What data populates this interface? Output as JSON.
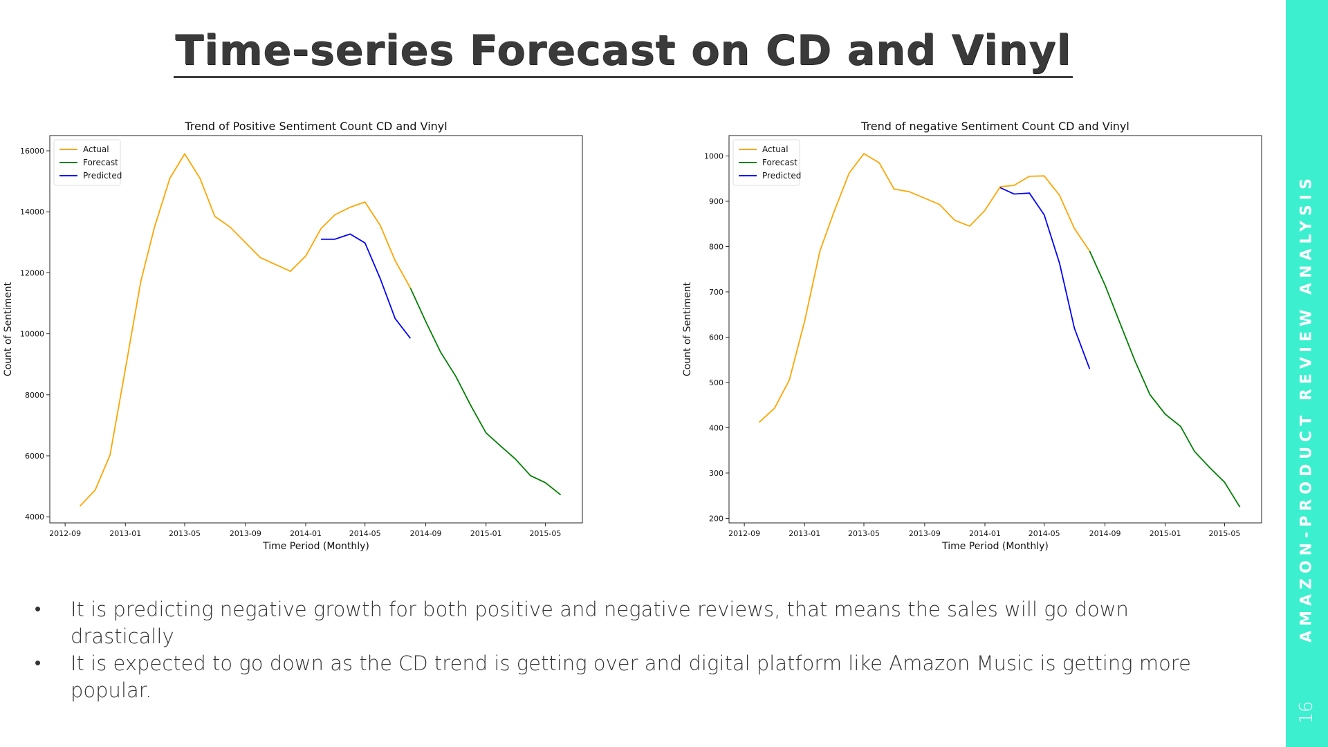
{
  "slide": {
    "title": "Time-series Forecast on CD and Vinyl",
    "sidebar_title": "AMAZON-PRODUCT REVIEW ANALYSIS",
    "page_number": "16",
    "accent_color": "#3cefcf"
  },
  "bullets": [
    "It is predicting negative growth for both positive and negative reviews, that means the sales will go down drastically",
    "It is expected to go down as the CD trend is getting over and digital platform like Amazon Music is getting more popular."
  ],
  "chart_data": [
    {
      "type": "line",
      "title": "Trend of Positive Sentiment Count CD and Vinyl",
      "xlabel": "Time Period (Monthly)",
      "ylabel": "Count of Sentiment",
      "x_ticks": [
        "2012-09",
        "2013-01",
        "2013-05",
        "2013-09",
        "2014-01",
        "2014-05",
        "2014-09",
        "2015-01",
        "2015-05"
      ],
      "y_ticks": [
        4000,
        6000,
        8000,
        10000,
        12000,
        14000,
        16000
      ],
      "ylim": [
        3800,
        16500
      ],
      "xlim": [
        "2012-08-01",
        "2015-07-15"
      ],
      "grid": false,
      "legend": "top-left",
      "series": [
        {
          "name": "Actual",
          "color": "#ffa500",
          "points": [
            [
              "2012-10-01",
              4350
            ],
            [
              "2012-11-01",
              4880
            ],
            [
              "2012-12-01",
              6030
            ],
            [
              "2013-01-01",
              8850
            ],
            [
              "2013-02-01",
              11700
            ],
            [
              "2013-03-01",
              13500
            ],
            [
              "2013-04-01",
              15100
            ],
            [
              "2013-05-01",
              15900
            ],
            [
              "2013-06-01",
              15100
            ],
            [
              "2013-07-01",
              13850
            ],
            [
              "2013-08-01",
              13500
            ],
            [
              "2013-10-01",
              12500
            ],
            [
              "2013-12-01",
              12050
            ],
            [
              "2014-01-01",
              12550
            ],
            [
              "2014-02-01",
              13450
            ],
            [
              "2014-03-01",
              13900
            ],
            [
              "2014-04-01",
              14150
            ],
            [
              "2014-05-01",
              14320
            ],
            [
              "2014-06-01",
              13550
            ],
            [
              "2014-07-01",
              12400
            ],
            [
              "2014-08-01",
              11500
            ]
          ]
        },
        {
          "name": "Forecast",
          "color": "#008000",
          "points": [
            [
              "2014-08-01",
              11500
            ],
            [
              "2014-09-01",
              10400
            ],
            [
              "2014-10-01",
              9400
            ],
            [
              "2014-11-01",
              8600
            ],
            [
              "2014-12-01",
              7650
            ],
            [
              "2015-01-01",
              6750
            ],
            [
              "2015-02-01",
              6300
            ],
            [
              "2015-03-01",
              5900
            ],
            [
              "2015-04-01",
              5350
            ],
            [
              "2015-05-01",
              5120
            ],
            [
              "2015-06-01",
              4720
            ]
          ]
        },
        {
          "name": "Predicted",
          "color": "#0000ff",
          "points": [
            [
              "2014-02-01",
              13100
            ],
            [
              "2014-03-01",
              13100
            ],
            [
              "2014-04-01",
              13270
            ],
            [
              "2014-05-01",
              12980
            ],
            [
              "2014-06-01",
              11800
            ],
            [
              "2014-07-01",
              10500
            ],
            [
              "2014-08-01",
              9850
            ]
          ]
        }
      ]
    },
    {
      "type": "line",
      "title": "Trend of negative Sentiment Count CD and Vinyl",
      "xlabel": "Time Period (Monthly)",
      "ylabel": "Count of Sentiment",
      "x_ticks": [
        "2012-09",
        "2013-01",
        "2013-05",
        "2013-09",
        "2014-01",
        "2014-05",
        "2014-09",
        "2015-01",
        "2015-05"
      ],
      "y_ticks": [
        200,
        300,
        400,
        500,
        600,
        700,
        800,
        900,
        1000
      ],
      "ylim": [
        190,
        1045
      ],
      "xlim": [
        "2012-08-01",
        "2015-07-15"
      ],
      "grid": false,
      "legend": "top-left",
      "series": [
        {
          "name": "Actual",
          "color": "#ffa500",
          "points": [
            [
              "2012-10-01",
              412
            ],
            [
              "2012-11-01",
              443
            ],
            [
              "2012-12-01",
              505
            ],
            [
              "2013-01-01",
              635
            ],
            [
              "2013-02-01",
              790
            ],
            [
              "2013-03-01",
              875
            ],
            [
              "2013-04-01",
              962
            ],
            [
              "2013-05-01",
              1005
            ],
            [
              "2013-06-01",
              985
            ],
            [
              "2013-07-01",
              927
            ],
            [
              "2013-08-01",
              921
            ],
            [
              "2013-10-01",
              893
            ],
            [
              "2013-11-01",
              858
            ],
            [
              "2013-12-01",
              845
            ],
            [
              "2014-01-01",
              880
            ],
            [
              "2014-02-01",
              932
            ],
            [
              "2014-03-01",
              935
            ],
            [
              "2014-04-01",
              955
            ],
            [
              "2014-05-01",
              956
            ],
            [
              "2014-06-01",
              913
            ],
            [
              "2014-07-01",
              840
            ],
            [
              "2014-08-01",
              790
            ]
          ]
        },
        {
          "name": "Forecast",
          "color": "#008000",
          "points": [
            [
              "2014-08-01",
              790
            ],
            [
              "2014-09-01",
              715
            ],
            [
              "2014-10-01",
              632
            ],
            [
              "2014-11-01",
              547
            ],
            [
              "2014-12-01",
              473
            ],
            [
              "2015-01-01",
              430
            ],
            [
              "2015-02-01",
              403
            ],
            [
              "2015-03-01",
              348
            ],
            [
              "2015-04-01",
              312
            ],
            [
              "2015-05-01",
              280
            ],
            [
              "2015-06-01",
              225
            ]
          ]
        },
        {
          "name": "Predicted",
          "color": "#0000ff",
          "points": [
            [
              "2014-02-01",
              930
            ],
            [
              "2014-03-01",
              916
            ],
            [
              "2014-04-01",
              918
            ],
            [
              "2014-05-01",
              870
            ],
            [
              "2014-06-01",
              763
            ],
            [
              "2014-07-01",
              620
            ],
            [
              "2014-08-01",
              530
            ]
          ]
        }
      ]
    }
  ]
}
